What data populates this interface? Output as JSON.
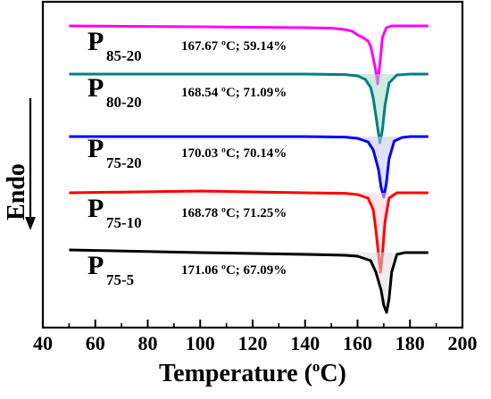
{
  "chart_data": {
    "type": "line",
    "title": "",
    "xlabel": "Temperature (",
    "xlabel_sup": "o",
    "xlabel_unit": "C)",
    "ylabel": "Endo",
    "xlim": [
      40,
      200
    ],
    "xticks": [
      40,
      60,
      80,
      100,
      120,
      140,
      160,
      180,
      200
    ],
    "grid": false,
    "series": [
      {
        "name": "P",
        "subscript": "85-20",
        "annotation": "167.67 ºC; 59.14%",
        "color": "#ff00ff",
        "x": [
          50,
          100,
          140,
          150,
          155,
          158,
          160,
          162,
          164,
          165,
          166,
          167,
          167.67,
          168.5,
          169.5,
          171,
          173,
          175,
          180,
          187
        ],
        "y": [
          29,
          30,
          31,
          31.5,
          33,
          35,
          39,
          42,
          46,
          52,
          65,
          80,
          94,
          72,
          42,
          31,
          29,
          29,
          29,
          29
        ]
      },
      {
        "name": "P",
        "subscript": "80-20",
        "annotation": "168.54 ºC; 71.09%",
        "color": "#008080",
        "x": [
          50,
          100,
          140,
          155,
          160,
          163,
          165,
          166,
          167,
          168,
          168.54,
          169.5,
          170.5,
          172,
          175,
          180,
          187
        ],
        "y": [
          83,
          83,
          83,
          83.5,
          85,
          89,
          98,
          110,
          130,
          150,
          160,
          145,
          118,
          93,
          84,
          83,
          83
        ],
        "fill": "#a8d8c8"
      },
      {
        "name": "P",
        "subscript": "75-20",
        "annotation": "170.03 ºC; 70.14%",
        "color": "#0000ff",
        "x": [
          50,
          100,
          140,
          155,
          160,
          164,
          166,
          168,
          169,
          170.03,
          171,
          172,
          174,
          177,
          180,
          187
        ],
        "y": [
          153,
          153,
          153,
          153.5,
          155,
          159,
          168,
          190,
          210,
          221,
          205,
          178,
          158,
          154,
          153,
          153
        ],
        "fill": "#c8c8ff"
      },
      {
        "name": "P",
        "subscript": "75-10",
        "annotation": "168.78 ºC; 71.25%",
        "color": "#ff0000",
        "x": [
          50,
          100,
          140,
          155,
          160,
          164,
          166,
          167,
          168,
          168.78,
          169.5,
          170.5,
          172,
          175,
          180,
          187
        ],
        "y": [
          216,
          214,
          216,
          216.5,
          218,
          222,
          235,
          258,
          285,
          305,
          285,
          248,
          222,
          216,
          216,
          216
        ],
        "fill": "#ffd0e0"
      },
      {
        "name": "P",
        "subscript": "75-5",
        "annotation": "171.06 ºC; 67.09%",
        "color": "#000000",
        "x": [
          50,
          100,
          140,
          155,
          160,
          165,
          167,
          169,
          170,
          171.06,
          172,
          173,
          175,
          178,
          182,
          187
        ],
        "y": [
          280,
          283,
          285,
          286,
          287,
          292,
          305,
          325,
          342,
          350,
          335,
          305,
          285,
          283,
          283,
          283
        ],
        "fill": "#dddddd"
      }
    ]
  }
}
